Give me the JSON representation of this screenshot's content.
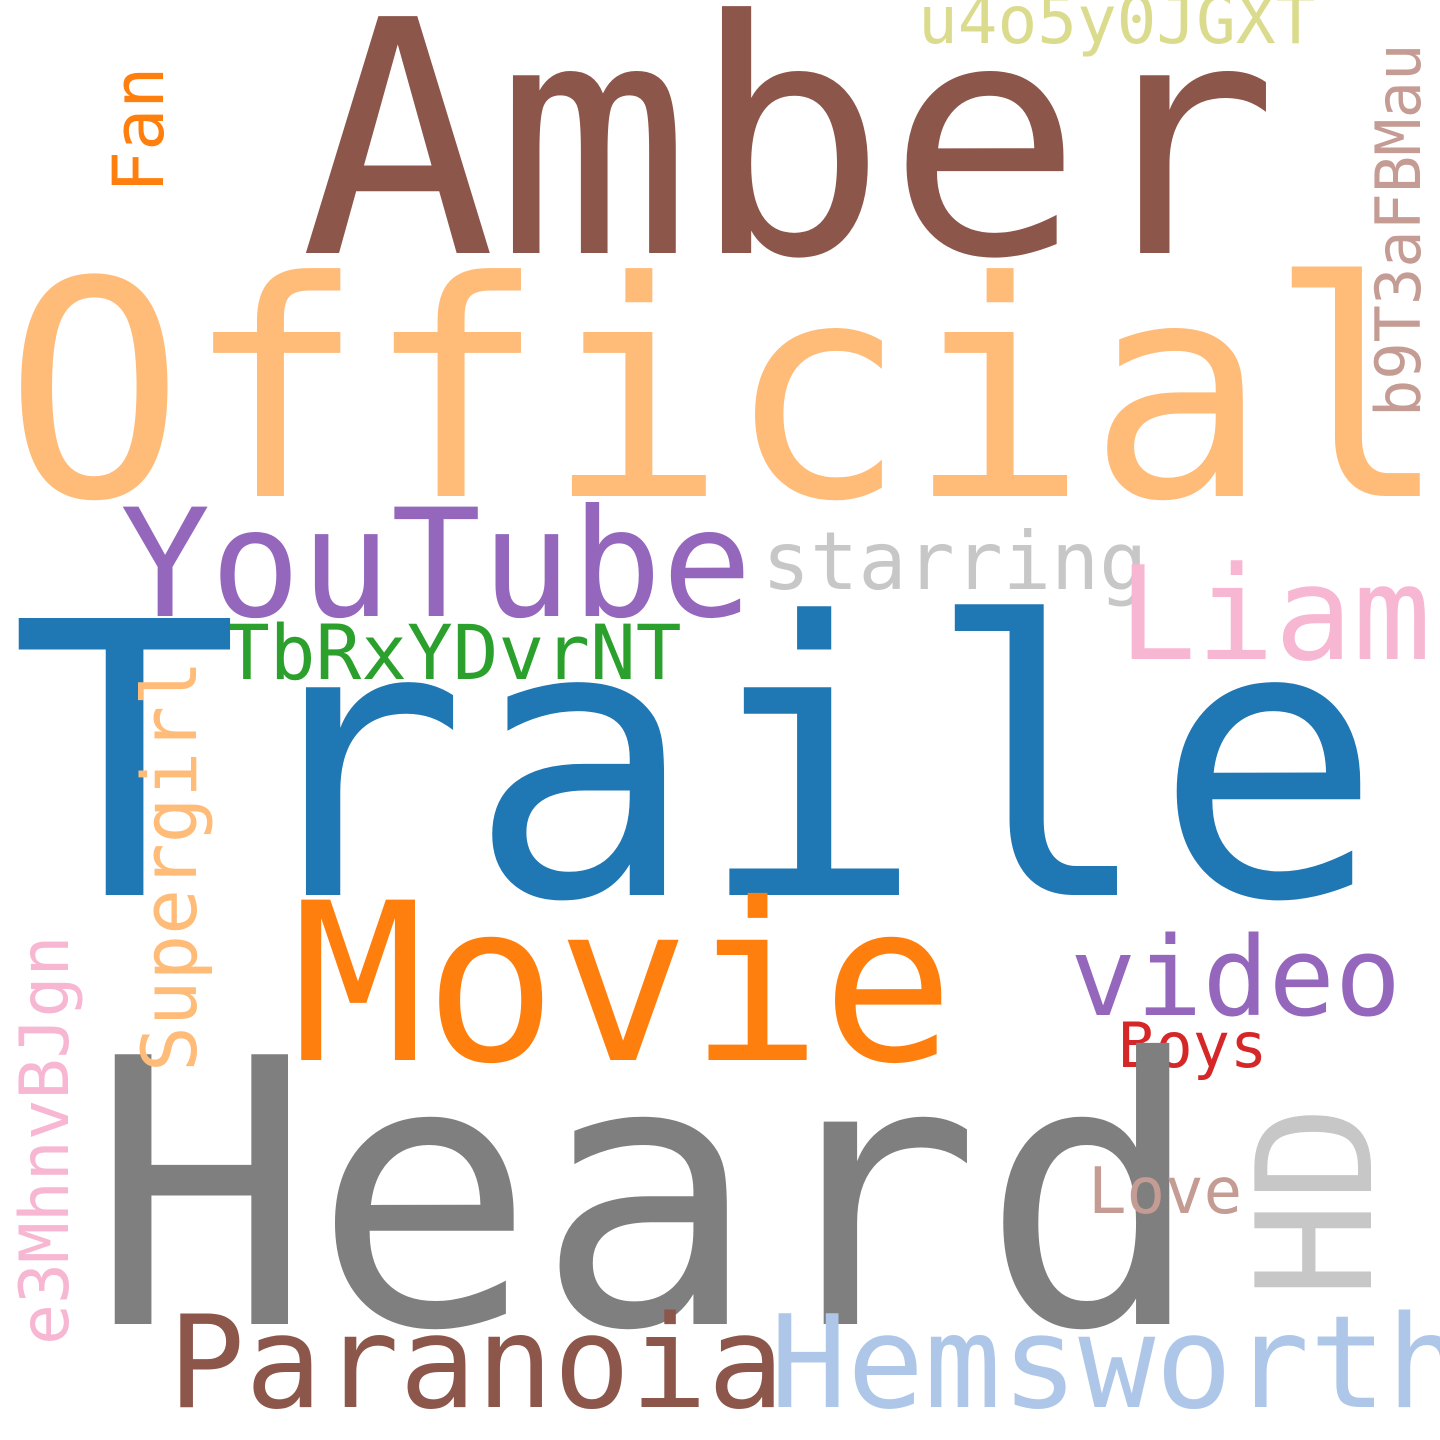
{
  "words": {
    "amber": {
      "text": "Amber",
      "color": "#8c564b"
    },
    "official": {
      "text": "Official",
      "color": "#ffbb78"
    },
    "youtube": {
      "text": "YouTube",
      "color": "#9467bd"
    },
    "starring": {
      "text": "starring",
      "color": "#c7c7c7"
    },
    "liam": {
      "text": "Liam",
      "color": "#f7b6d2"
    },
    "tbr": {
      "text": "TbRxYDvrNT",
      "color": "#2ca02c"
    },
    "trailer": {
      "text": "Trailer",
      "color": "#1f77b4"
    },
    "movie": {
      "text": "Movie",
      "color": "#ff7f0e"
    },
    "video": {
      "text": "video",
      "color": "#9467bd"
    },
    "boys": {
      "text": "Boys",
      "color": "#d62728"
    },
    "heard": {
      "text": "Heard",
      "color": "#7f7f7f"
    },
    "love": {
      "text": "Love",
      "color": "#c49c94"
    },
    "paranoia": {
      "text": "Paranoia",
      "color": "#8c564b"
    },
    "hemsworth": {
      "text": "Hemsworth",
      "color": "#aec7e8"
    },
    "u4o": {
      "text": "u4o5y0JGXT",
      "color": "#dbdb8d"
    },
    "fan": {
      "text": "Fan",
      "color": "#ff7f0e"
    },
    "b9t": {
      "text": "b9T3aFBMau",
      "color": "#c49c94"
    },
    "supergirl": {
      "text": "Supergirl",
      "color": "#ffbb78"
    },
    "e3m": {
      "text": "e3MhnvBJgn",
      "color": "#f7b6d2"
    },
    "hd": {
      "text": "HD",
      "color": "#c7c7c7"
    }
  }
}
